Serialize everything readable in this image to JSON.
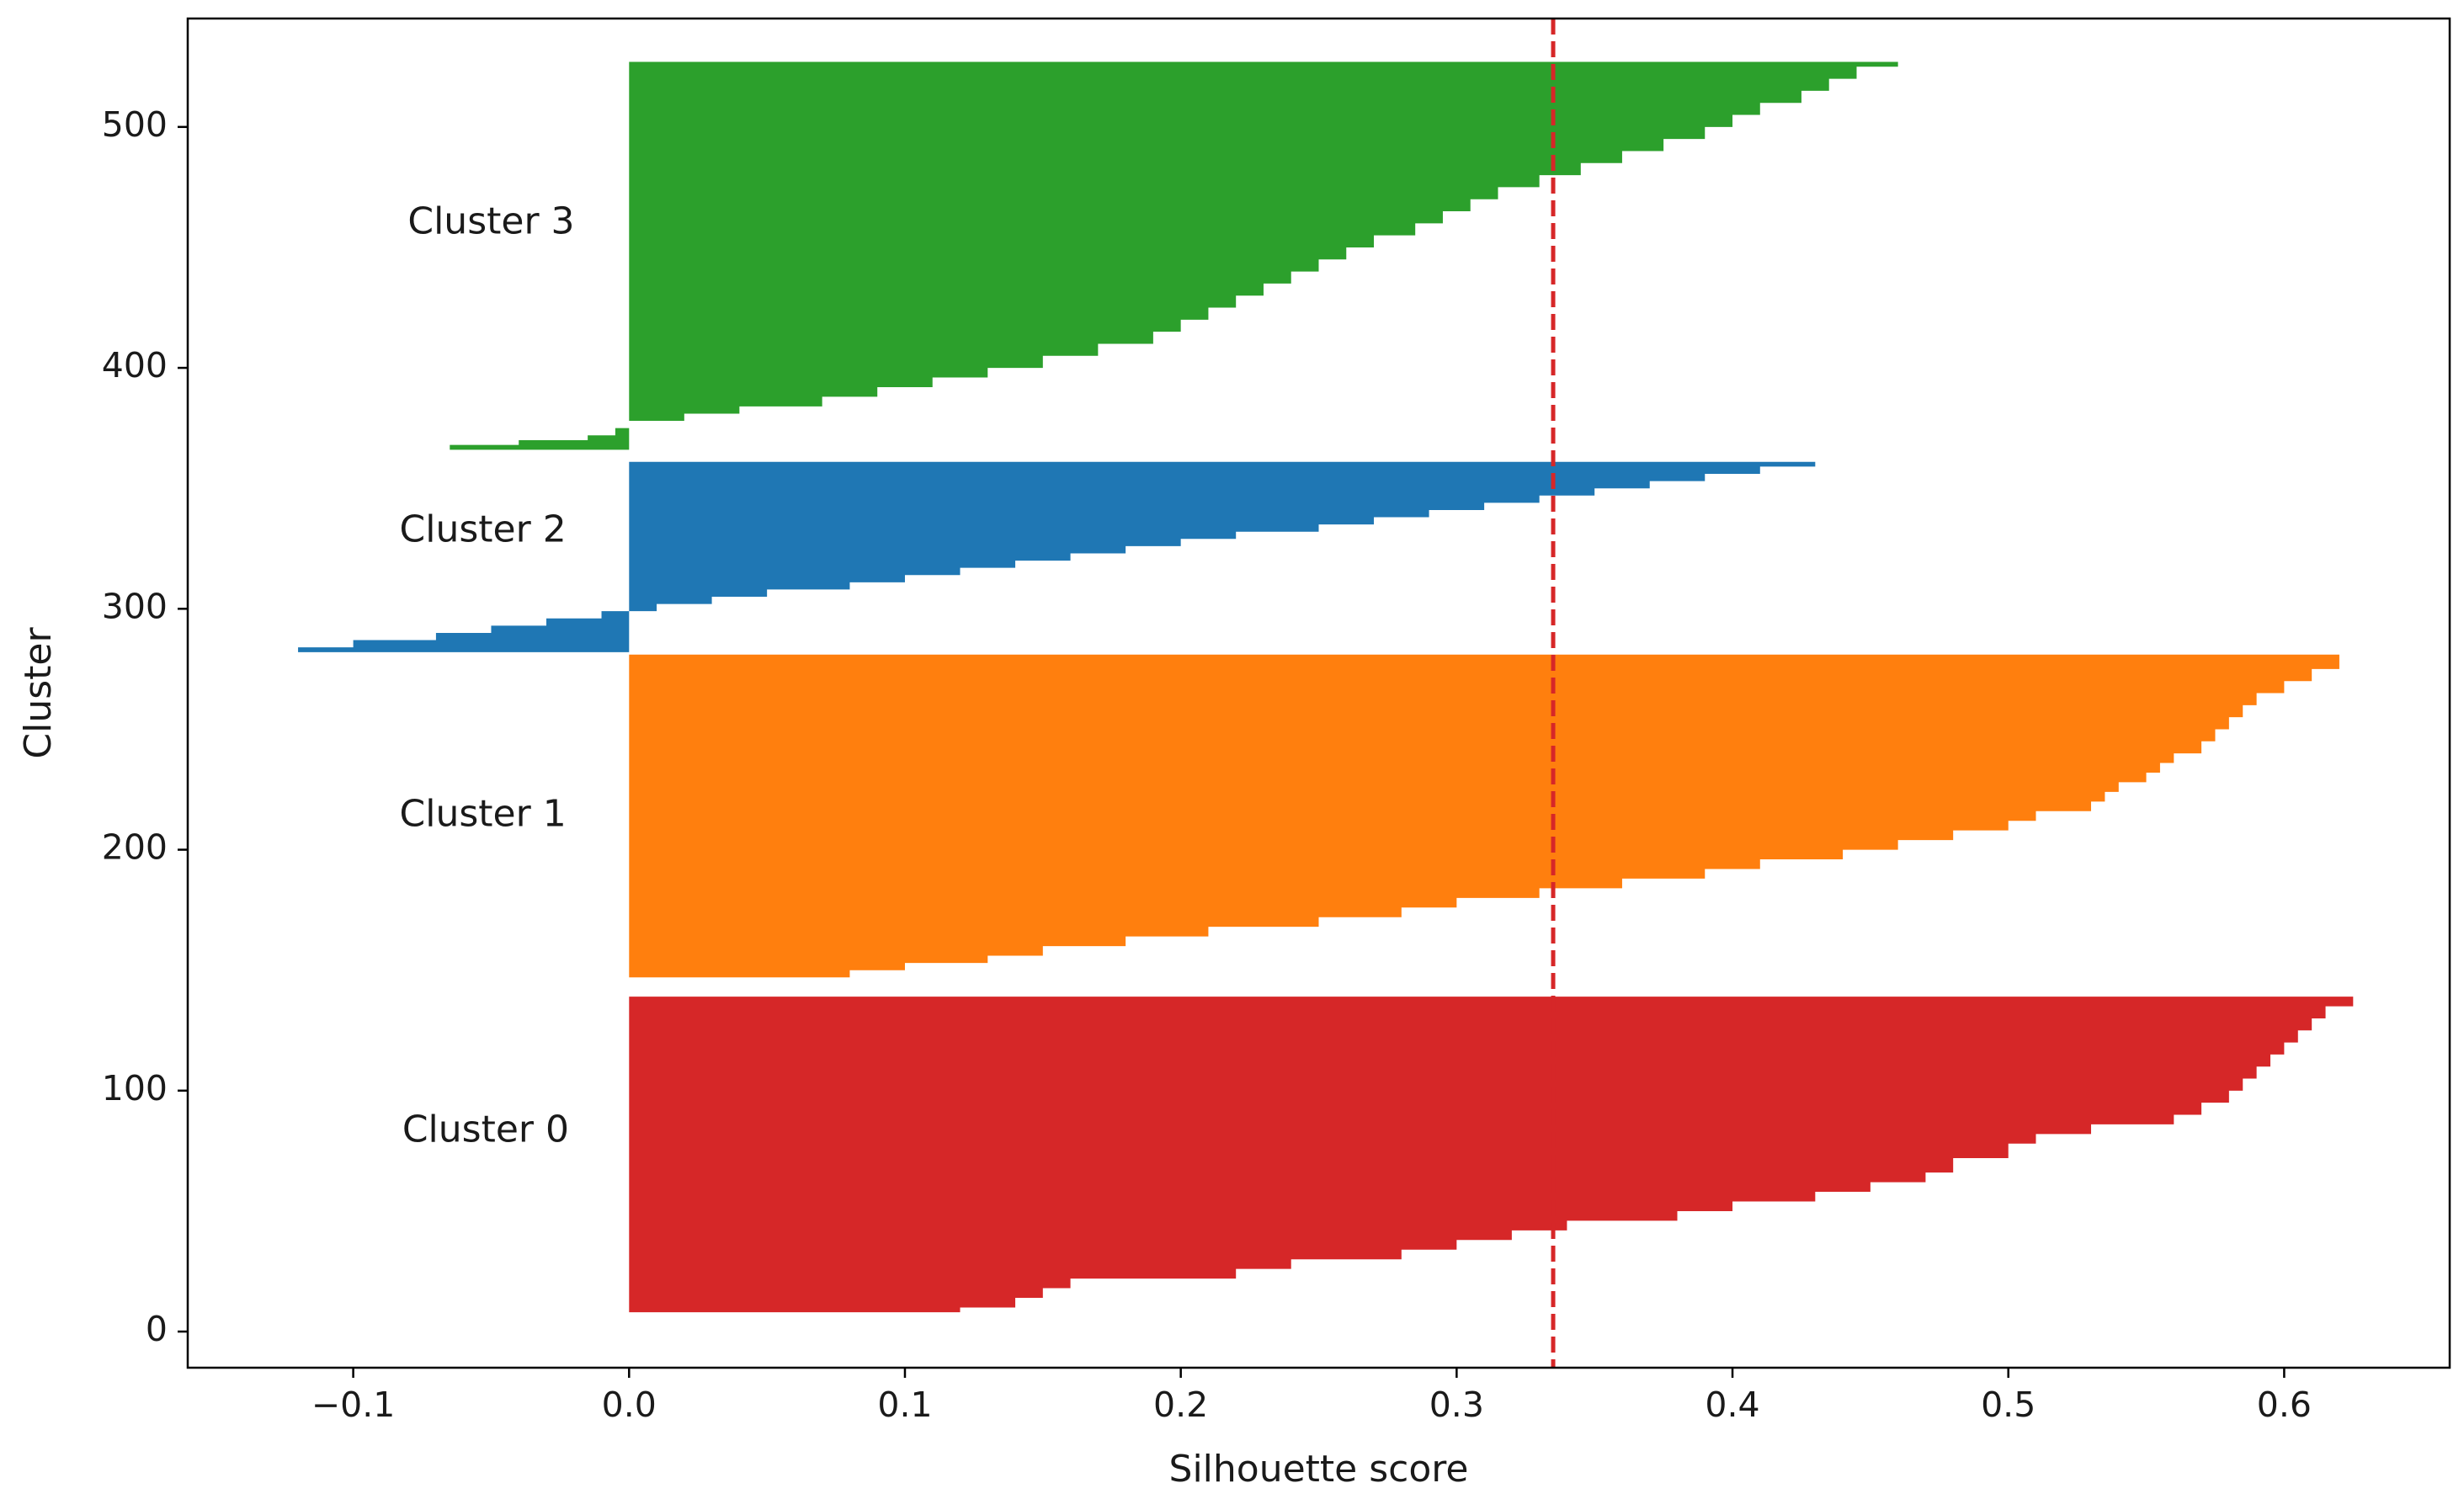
{
  "chart_data": {
    "type": "silhouette",
    "title": "",
    "xlabel": "Silhouette score",
    "ylabel": "Cluster",
    "xlim": [
      -0.16,
      0.66
    ],
    "ylim": [
      -15,
      545
    ],
    "xticks": [
      -0.1,
      0.0,
      0.1,
      0.2,
      0.3,
      0.4,
      0.5,
      0.6
    ],
    "xtick_labels": [
      "−0.1",
      "0.0",
      "0.1",
      "0.2",
      "0.3",
      "0.4",
      "0.5",
      "0.6"
    ],
    "yticks": [
      0,
      100,
      200,
      300,
      400,
      500
    ],
    "ytick_labels": [
      "0",
      "100",
      "200",
      "300",
      "400",
      "500"
    ],
    "grid": false,
    "average_silhouette": 0.335,
    "average_line_color": "#d62728",
    "clusters": [
      {
        "name": "Cluster 0",
        "color": "#d62728",
        "y_lower": 8,
        "y_upper": 139,
        "label_x": -0.052,
        "label_y": 83,
        "profile": [
          [
            8,
            0.12
          ],
          [
            10,
            0.14
          ],
          [
            14,
            0.15
          ],
          [
            18,
            0.16
          ],
          [
            22,
            0.22
          ],
          [
            26,
            0.24
          ],
          [
            30,
            0.28
          ],
          [
            34,
            0.3
          ],
          [
            38,
            0.32
          ],
          [
            42,
            0.34
          ],
          [
            46,
            0.38
          ],
          [
            50,
            0.4
          ],
          [
            54,
            0.43
          ],
          [
            58,
            0.45
          ],
          [
            62,
            0.47
          ],
          [
            66,
            0.48
          ],
          [
            72,
            0.5
          ],
          [
            78,
            0.51
          ],
          [
            82,
            0.53
          ],
          [
            86,
            0.56
          ],
          [
            90,
            0.57
          ],
          [
            95,
            0.58
          ],
          [
            100,
            0.585
          ],
          [
            105,
            0.59
          ],
          [
            110,
            0.595
          ],
          [
            115,
            0.6
          ],
          [
            120,
            0.605
          ],
          [
            125,
            0.61
          ],
          [
            130,
            0.615
          ],
          [
            135,
            0.625
          ],
          [
            139,
            0.63
          ]
        ]
      },
      {
        "name": "Cluster 1",
        "color": "#ff7f0e",
        "y_lower": 147,
        "y_upper": 281,
        "label_x": -0.053,
        "label_y": 214,
        "profile": [
          [
            147,
            0.08
          ],
          [
            150,
            0.1
          ],
          [
            153,
            0.13
          ],
          [
            156,
            0.15
          ],
          [
            160,
            0.18
          ],
          [
            164,
            0.21
          ],
          [
            168,
            0.25
          ],
          [
            172,
            0.28
          ],
          [
            176,
            0.3
          ],
          [
            180,
            0.33
          ],
          [
            184,
            0.36
          ],
          [
            188,
            0.39
          ],
          [
            192,
            0.41
          ],
          [
            196,
            0.44
          ],
          [
            200,
            0.46
          ],
          [
            204,
            0.48
          ],
          [
            208,
            0.5
          ],
          [
            212,
            0.51
          ],
          [
            216,
            0.53
          ],
          [
            220,
            0.535
          ],
          [
            224,
            0.54
          ],
          [
            228,
            0.55
          ],
          [
            232,
            0.555
          ],
          [
            236,
            0.56
          ],
          [
            240,
            0.57
          ],
          [
            245,
            0.575
          ],
          [
            250,
            0.58
          ],
          [
            255,
            0.585
          ],
          [
            260,
            0.59
          ],
          [
            265,
            0.6
          ],
          [
            270,
            0.61
          ],
          [
            275,
            0.62
          ],
          [
            281,
            0.63
          ]
        ]
      },
      {
        "name": "Cluster 2",
        "color": "#1f77b4",
        "y_lower": 282,
        "y_upper": 361,
        "label_x": -0.053,
        "label_y": 332,
        "profile": [
          [
            282,
            -0.12
          ],
          [
            284,
            -0.1
          ],
          [
            287,
            -0.07
          ],
          [
            290,
            -0.05
          ],
          [
            293,
            -0.03
          ],
          [
            296,
            -0.01
          ],
          [
            299,
            0.01
          ],
          [
            302,
            0.03
          ],
          [
            305,
            0.05
          ],
          [
            308,
            0.08
          ],
          [
            311,
            0.1
          ],
          [
            314,
            0.12
          ],
          [
            317,
            0.14
          ],
          [
            320,
            0.16
          ],
          [
            323,
            0.18
          ],
          [
            326,
            0.2
          ],
          [
            329,
            0.22
          ],
          [
            332,
            0.25
          ],
          [
            335,
            0.27
          ],
          [
            338,
            0.29
          ],
          [
            341,
            0.31
          ],
          [
            344,
            0.33
          ],
          [
            347,
            0.35
          ],
          [
            350,
            0.37
          ],
          [
            353,
            0.39
          ],
          [
            356,
            0.41
          ],
          [
            359,
            0.43
          ],
          [
            361,
            0.445
          ]
        ]
      },
      {
        "name": "Cluster 3",
        "color": "#2ca02c",
        "y_lower": 366,
        "y_upper": 527,
        "label_x": -0.05,
        "label_y": 460,
        "profile": [
          [
            366,
            -0.065
          ],
          [
            368,
            -0.04
          ],
          [
            370,
            -0.015
          ],
          [
            372,
            -0.005
          ],
          [
            375,
            0.0
          ],
          [
            378,
            0.02
          ],
          [
            381,
            0.04
          ],
          [
            384,
            0.07
          ],
          [
            388,
            0.09
          ],
          [
            392,
            0.11
          ],
          [
            396,
            0.13
          ],
          [
            400,
            0.15
          ],
          [
            405,
            0.17
          ],
          [
            410,
            0.19
          ],
          [
            415,
            0.2
          ],
          [
            420,
            0.21
          ],
          [
            425,
            0.22
          ],
          [
            430,
            0.23
          ],
          [
            435,
            0.24
          ],
          [
            440,
            0.25
          ],
          [
            445,
            0.26
          ],
          [
            450,
            0.27
          ],
          [
            455,
            0.285
          ],
          [
            460,
            0.295
          ],
          [
            465,
            0.305
          ],
          [
            470,
            0.315
          ],
          [
            475,
            0.33
          ],
          [
            480,
            0.345
          ],
          [
            485,
            0.36
          ],
          [
            490,
            0.375
          ],
          [
            495,
            0.39
          ],
          [
            500,
            0.4
          ],
          [
            505,
            0.41
          ],
          [
            510,
            0.425
          ],
          [
            515,
            0.435
          ],
          [
            520,
            0.445
          ],
          [
            525,
            0.46
          ],
          [
            527,
            0.47
          ]
        ]
      }
    ]
  }
}
